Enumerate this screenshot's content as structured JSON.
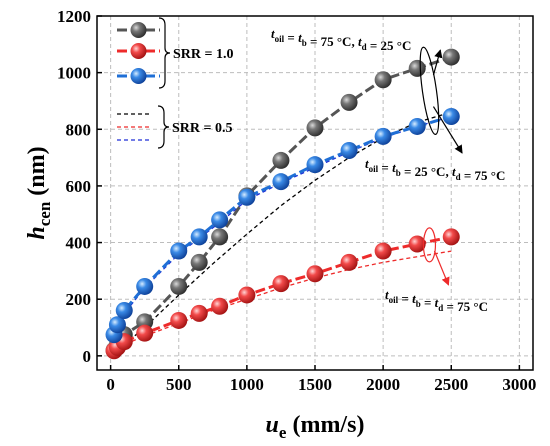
{
  "chart_data": {
    "type": "line",
    "title": "",
    "xlabel": {
      "main": "u",
      "sub": "e",
      "unit": " (mm/s)"
    },
    "ylabel": {
      "main": "h",
      "sub": "cen",
      "unit": " (nm)"
    },
    "xlim": [
      -100,
      3100
    ],
    "ylim": [
      -50,
      1200
    ],
    "xticks": [
      0,
      500,
      1000,
      1500,
      2000,
      2500,
      3000
    ],
    "yticks": [
      0,
      200,
      400,
      600,
      800,
      1000,
      1200
    ],
    "grid": true,
    "legend_position": "top-left",
    "legend_groups": [
      {
        "label": "SRR = 1.0",
        "entries": [
          "s_gray",
          "s_red",
          "s_blue"
        ]
      },
      {
        "label": "SRR = 0.5",
        "entries": [
          "d_gray",
          "d_red",
          "d_blue"
        ]
      }
    ],
    "series": [
      {
        "id": "s_gray",
        "srr": "1.0",
        "color": "#555555",
        "style": "solid-marker",
        "x": [
          25,
          50,
          100,
          250,
          500,
          650,
          800,
          1000,
          1250,
          1500,
          1750,
          2000,
          2250,
          2500
        ],
        "y": [
          20,
          40,
          75,
          120,
          245,
          330,
          420,
          565,
          690,
          805,
          895,
          975,
          1015,
          1055
        ]
      },
      {
        "id": "s_red",
        "srr": "1.0",
        "color": "#ee2b2b",
        "style": "solid-marker",
        "x": [
          25,
          50,
          100,
          250,
          500,
          650,
          800,
          1000,
          1250,
          1500,
          1750,
          2000,
          2250,
          2500
        ],
        "y": [
          18,
          30,
          50,
          80,
          125,
          150,
          175,
          215,
          255,
          290,
          330,
          370,
          395,
          420
        ]
      },
      {
        "id": "s_blue",
        "srr": "1.0",
        "color": "#1f6fd6",
        "style": "solid-marker",
        "x": [
          25,
          50,
          100,
          250,
          500,
          650,
          800,
          1000,
          1250,
          1500,
          1750,
          2000,
          2250,
          2500
        ],
        "y": [
          75,
          110,
          160,
          245,
          370,
          420,
          480,
          560,
          615,
          675,
          725,
          775,
          810,
          845
        ]
      },
      {
        "id": "d_gray",
        "srr": "0.5",
        "color": "#000000",
        "style": "dashed",
        "x": [
          25,
          100,
          250,
          500,
          750,
          1000,
          1250,
          1500,
          1750,
          2000,
          2250,
          2500
        ],
        "y": [
          5,
          40,
          100,
          215,
          325,
          430,
          530,
          620,
          700,
          770,
          825,
          860
        ]
      },
      {
        "id": "d_red",
        "srr": "0.5",
        "color": "#ee2b2b",
        "style": "dashed",
        "x": [
          25,
          100,
          250,
          500,
          750,
          1000,
          1250,
          1500,
          1750,
          2000,
          2250,
          2500
        ],
        "y": [
          15,
          40,
          70,
          115,
          160,
          200,
          240,
          275,
          305,
          330,
          350,
          370
        ]
      },
      {
        "id": "d_blue",
        "srr": "0.5",
        "color": "#1e2fd6",
        "style": "dashed",
        "x": [
          25,
          100,
          250,
          500,
          650,
          800,
          1000,
          1250,
          1500,
          1750,
          2000,
          2250,
          2500
        ],
        "y": [
          70,
          150,
          240,
          360,
          415,
          470,
          550,
          610,
          665,
          720,
          770,
          810,
          845
        ]
      }
    ],
    "annotations": [
      {
        "id": "gray",
        "color": "#000000",
        "parts": [
          [
            "t",
            "oil"
          ],
          [
            " = ",
            ""
          ],
          [
            "t",
            "b"
          ],
          [
            " = 75 °C, ",
            ""
          ],
          [
            "t",
            "d"
          ],
          [
            " = 25 °C",
            ""
          ]
        ]
      },
      {
        "id": "blue",
        "color": "#000000",
        "parts": [
          [
            "t",
            "oil"
          ],
          [
            " = ",
            ""
          ],
          [
            "t",
            "b"
          ],
          [
            " = 25 °C, ",
            ""
          ],
          [
            "t",
            "d"
          ],
          [
            " = 75 °C",
            ""
          ]
        ]
      },
      {
        "id": "red",
        "color": "#ee2b2b",
        "parts": [
          [
            "t",
            "oil"
          ],
          [
            " = ",
            ""
          ],
          [
            "t",
            "b"
          ],
          [
            " = ",
            ""
          ],
          [
            "t",
            "d"
          ],
          [
            " = 75 °C",
            ""
          ]
        ]
      }
    ]
  }
}
